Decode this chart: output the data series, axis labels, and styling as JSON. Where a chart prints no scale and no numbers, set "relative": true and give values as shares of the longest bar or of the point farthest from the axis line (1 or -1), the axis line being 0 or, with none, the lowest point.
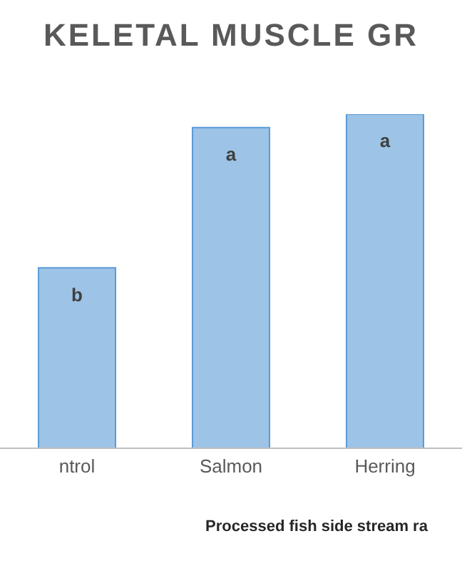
{
  "chart_data": {
    "type": "bar",
    "title": "KELETAL MUSCLE GR",
    "xlabel": "Processed fish side stream ra",
    "categories": [
      "ntrol",
      "Salmon",
      "Herring"
    ],
    "relative": true,
    "values": [
      0.54,
      0.96,
      1
    ],
    "color": "#9dc3e6",
    "annotations": [
      {
        "text": "b",
        "x": "ntrol",
        "y": 0.54
      },
      {
        "text": "a",
        "x": "Salmon",
        "y": 0.96
      },
      {
        "text": "a",
        "x": "Herring",
        "y": 1
      }
    ],
    "grid": false,
    "legend": false
  }
}
